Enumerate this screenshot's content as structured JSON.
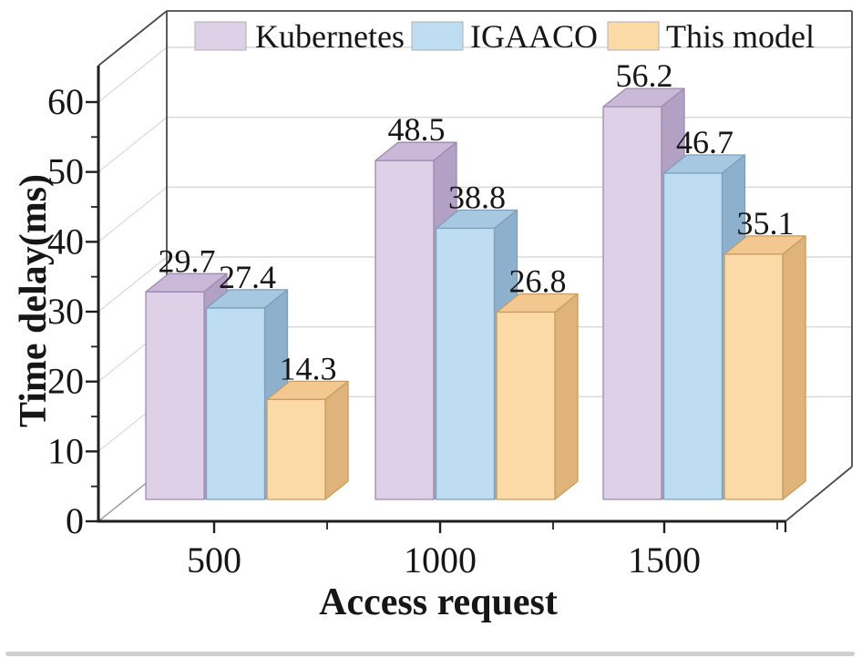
{
  "chart_data": {
    "type": "bar",
    "style": "3d-column",
    "title": "",
    "xlabel": "Access request",
    "ylabel": "Time delay(ms)",
    "categories": [
      "500",
      "1000",
      "1500"
    ],
    "series": [
      {
        "name": "Kubernetes",
        "values": [
          29.7,
          48.5,
          56.2
        ],
        "front_color": "#ddd0e7",
        "top_color": "#c9b8d7",
        "side_color": "#b3a0c5",
        "edge_color": "#9d8ab0"
      },
      {
        "name": "IGAACO",
        "values": [
          27.4,
          38.8,
          46.7
        ],
        "front_color": "#bedcf2",
        "top_color": "#a6c9e1",
        "side_color": "#8db1cd",
        "edge_color": "#7f9ebc"
      },
      {
        "name": "This model",
        "values": [
          14.3,
          26.8,
          35.1
        ],
        "front_color": "#fbdaa7",
        "top_color": "#f2c890",
        "side_color": "#e0b37a",
        "edge_color": "#c69c64"
      }
    ],
    "y_ticks": [
      0,
      10,
      20,
      30,
      40,
      50,
      60
    ],
    "ylim": [
      0,
      60
    ],
    "y_minor_step": 5,
    "grid": true,
    "legend_position": "top-inside",
    "value_labels_decimals": 1
  },
  "colors": {
    "axis": "#1f1f1f",
    "frame": "#4a4a4a",
    "grid": "#d9d9d9",
    "text": "#161616",
    "scrollbar": "#cfcfcf"
  }
}
